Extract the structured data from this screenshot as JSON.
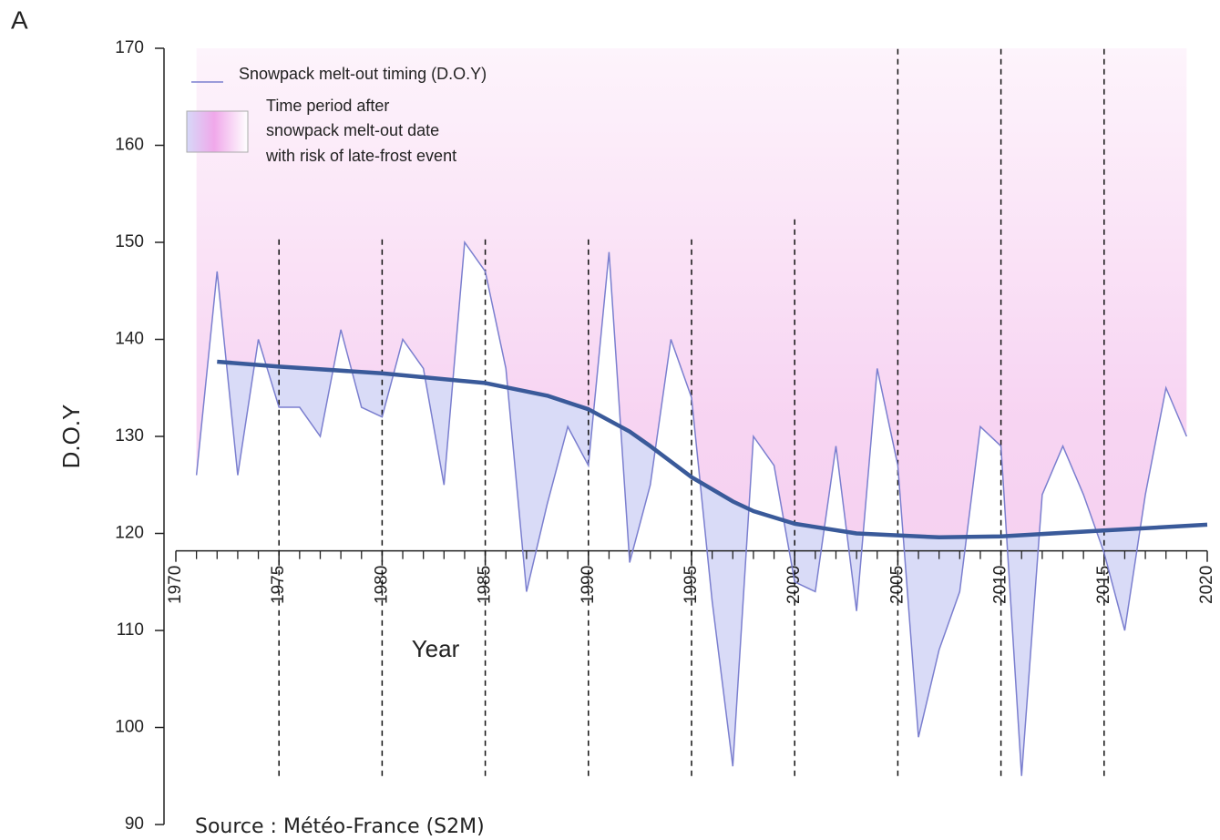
{
  "chart_data": {
    "type": "line",
    "panel_label": "A",
    "xlabel": "Year",
    "ylabel": "D.O.Y",
    "source": "Source : Météo-France (S2M)",
    "x": [
      1971,
      1972,
      1973,
      1974,
      1975,
      1976,
      1977,
      1978,
      1979,
      1980,
      1981,
      1982,
      1983,
      1984,
      1985,
      1986,
      1987,
      1988,
      1989,
      1990,
      1991,
      1992,
      1993,
      1994,
      1995,
      1996,
      1997,
      1998,
      1999,
      2000,
      2001,
      2002,
      2003,
      2004,
      2005,
      2006,
      2007,
      2008,
      2009,
      2010,
      2011,
      2012,
      2013,
      2014,
      2015,
      2016,
      2017,
      2018,
      2019
    ],
    "series": [
      {
        "name": "Snowpack melt-out timing (D.O.Y)",
        "color": "#7b7fcf",
        "values": [
          126,
          147,
          126,
          140,
          133,
          133,
          130,
          141,
          133,
          132,
          140,
          137,
          125,
          150,
          147,
          137,
          114,
          123,
          131,
          127,
          149,
          117,
          125,
          140,
          134,
          113,
          96,
          130,
          127,
          115,
          114,
          129,
          112,
          137,
          127,
          99,
          108,
          114,
          131,
          129,
          95,
          124,
          129,
          124,
          118,
          110,
          124,
          135,
          130
        ]
      }
    ],
    "trend": {
      "color": "#3a5a9a",
      "x": [
        1972,
        1975,
        1980,
        1985,
        1988,
        1990,
        1992,
        1993,
        1995,
        1997,
        1998,
        2000,
        2003,
        2007,
        2010,
        2015,
        2020
      ],
      "values": [
        137.7,
        137.2,
        136.5,
        135.5,
        134.2,
        132.8,
        130.5,
        129,
        125.8,
        123.3,
        122.3,
        121,
        120,
        119.6,
        119.7,
        120.3,
        120.9
      ]
    },
    "shading_legend": [
      "Time period after",
      "snowpack melt-out date",
      "with risk of late-frost event"
    ],
    "xlim": [
      1970,
      2020
    ],
    "xticks": [
      1970,
      1975,
      1980,
      1985,
      1990,
      1995,
      2000,
      2005,
      2010,
      2015,
      2020
    ],
    "xminorticks": [
      1971,
      1972,
      1973,
      1974,
      1976,
      1977,
      1978,
      1979,
      1981,
      1982,
      1983,
      1984,
      1986,
      1987,
      1988,
      1989,
      1991,
      1992,
      1993,
      1994,
      1996,
      1997,
      1998,
      1999,
      2001,
      2002,
      2003,
      2004,
      2006,
      2007,
      2008,
      2009,
      2011,
      2012,
      2013,
      2014,
      2016,
      2017,
      2018,
      2019
    ],
    "x_axis_at": 118.2,
    "ylim": [
      90,
      170
    ],
    "yticks": [
      90,
      100,
      110,
      120,
      130,
      140,
      150,
      160,
      170
    ],
    "dashed_lines": [
      {
        "x": 1975,
        "ylim": [
          95,
          150.5
        ]
      },
      {
        "x": 1980,
        "ylim": [
          95,
          150.5
        ]
      },
      {
        "x": 1985,
        "ylim": [
          95,
          150.5
        ]
      },
      {
        "x": 1990,
        "ylim": [
          95,
          150.5
        ]
      },
      {
        "x": 1995,
        "ylim": [
          95,
          150.5
        ]
      },
      {
        "x": 2000,
        "ylim": [
          95,
          152.7
        ]
      },
      {
        "x": 2005,
        "ylim": [
          95,
          170
        ]
      },
      {
        "x": 2010,
        "ylim": [
          95,
          170
        ]
      },
      {
        "x": 2015,
        "ylim": [
          95,
          170
        ]
      }
    ]
  }
}
